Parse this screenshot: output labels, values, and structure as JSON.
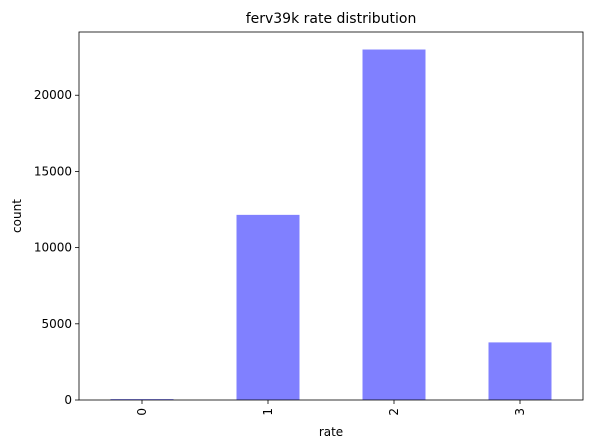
{
  "chart_data": {
    "type": "bar",
    "title": "ferv39k rate distribution",
    "xlabel": "rate",
    "ylabel": "count",
    "categories": [
      "0",
      "1",
      "2",
      "3"
    ],
    "values": [
      60,
      12150,
      23000,
      3780
    ],
    "ylim": [
      0,
      24150
    ],
    "yticks": [
      0,
      5000,
      10000,
      15000,
      20000
    ],
    "grid": false,
    "legend": "none",
    "bar_color": "#8080ff",
    "x_tick_rotation": 90
  }
}
